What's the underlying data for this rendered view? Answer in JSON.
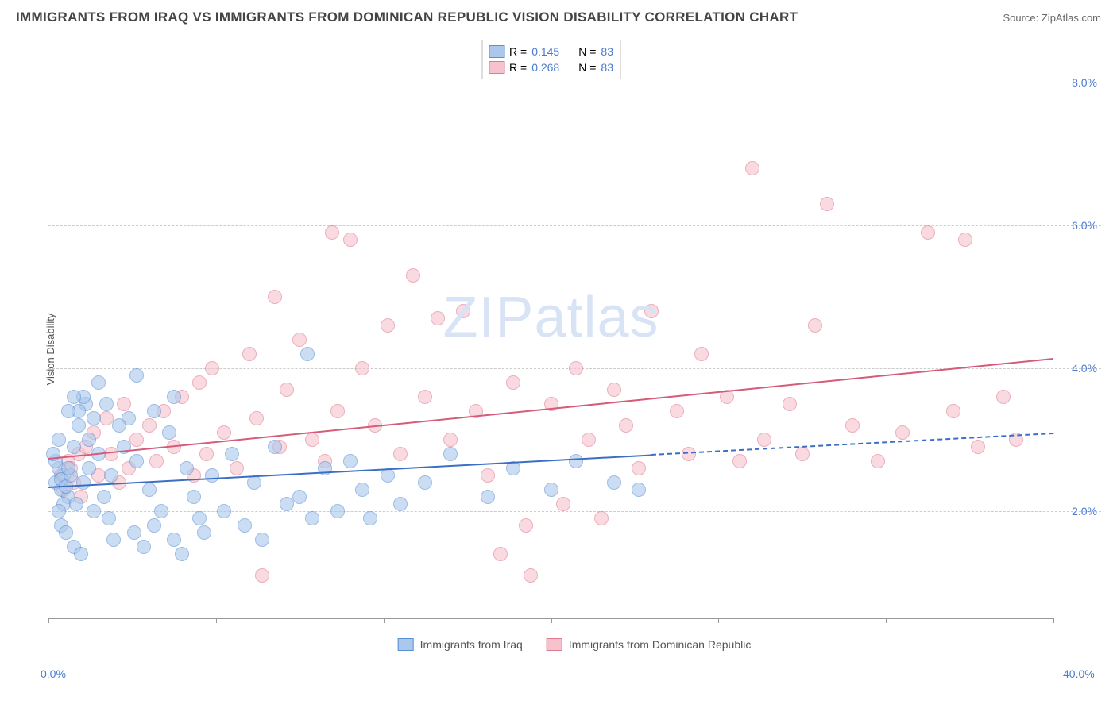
{
  "header": {
    "title": "IMMIGRANTS FROM IRAQ VS IMMIGRANTS FROM DOMINICAN REPUBLIC VISION DISABILITY CORRELATION CHART",
    "source": "Source: ZipAtlas.com"
  },
  "watermark": "ZIPatlas",
  "chart": {
    "type": "scatter",
    "ylabel": "Vision Disability",
    "xlim": [
      0,
      40
    ],
    "ylim": [
      0.5,
      8.6
    ],
    "yticks": [
      2.0,
      4.0,
      6.0,
      8.0
    ],
    "ytick_labels": [
      "2.0%",
      "4.0%",
      "6.0%",
      "8.0%"
    ],
    "xticks": [
      0,
      6.67,
      13.33,
      20,
      26.67,
      33.33,
      40
    ],
    "xtick_labels": {
      "start": "0.0%",
      "end": "40.0%"
    },
    "grid_color": "#cccccc",
    "axis_color": "#999999",
    "background_color": "#ffffff",
    "point_radius": 9,
    "point_opacity": 0.6,
    "series": {
      "iraq": {
        "label": "Immigrants from Iraq",
        "fill_color": "#a9c8ec",
        "stroke_color": "#5b8fd6",
        "R": "0.145",
        "N": "83",
        "trend": {
          "x1": 0,
          "y1": 2.35,
          "x2": 40,
          "y2": 3.1,
          "color": "#3a6fc5",
          "dash_from_x": 24
        },
        "points": [
          [
            0.3,
            2.4
          ],
          [
            0.5,
            2.3
          ],
          [
            0.6,
            2.5
          ],
          [
            0.4,
            2.6
          ],
          [
            0.8,
            2.2
          ],
          [
            0.5,
            2.45
          ],
          [
            0.7,
            2.35
          ],
          [
            0.9,
            2.5
          ],
          [
            0.3,
            2.7
          ],
          [
            0.6,
            2.1
          ],
          [
            0.4,
            2.0
          ],
          [
            0.8,
            2.6
          ],
          [
            1.0,
            2.9
          ],
          [
            1.2,
            3.2
          ],
          [
            0.5,
            1.8
          ],
          [
            0.7,
            1.7
          ],
          [
            1.0,
            1.5
          ],
          [
            1.3,
            1.4
          ],
          [
            1.1,
            2.1
          ],
          [
            1.4,
            2.4
          ],
          [
            1.6,
            2.6
          ],
          [
            1.8,
            3.3
          ],
          [
            1.5,
            3.5
          ],
          [
            2.0,
            2.8
          ],
          [
            2.2,
            2.2
          ],
          [
            2.4,
            1.9
          ],
          [
            2.6,
            1.6
          ],
          [
            2.0,
            3.8
          ],
          [
            1.2,
            3.4
          ],
          [
            1.4,
            3.6
          ],
          [
            1.8,
            2.0
          ],
          [
            2.5,
            2.5
          ],
          [
            3.0,
            2.9
          ],
          [
            3.2,
            3.3
          ],
          [
            3.5,
            2.7
          ],
          [
            3.8,
            1.5
          ],
          [
            3.4,
            1.7
          ],
          [
            4.0,
            2.3
          ],
          [
            4.2,
            1.8
          ],
          [
            4.5,
            2.0
          ],
          [
            4.8,
            3.1
          ],
          [
            5.0,
            1.6
          ],
          [
            5.3,
            1.4
          ],
          [
            5.5,
            2.6
          ],
          [
            5.8,
            2.2
          ],
          [
            6.0,
            1.9
          ],
          [
            6.5,
            2.5
          ],
          [
            6.2,
            1.7
          ],
          [
            7.0,
            2.0
          ],
          [
            7.3,
            2.8
          ],
          [
            7.8,
            1.8
          ],
          [
            8.2,
            2.4
          ],
          [
            8.5,
            1.6
          ],
          [
            9.0,
            2.9
          ],
          [
            9.5,
            2.1
          ],
          [
            10.0,
            2.2
          ],
          [
            10.3,
            4.2
          ],
          [
            10.5,
            1.9
          ],
          [
            11.0,
            2.6
          ],
          [
            11.5,
            2.0
          ],
          [
            12.0,
            2.7
          ],
          [
            12.5,
            2.3
          ],
          [
            12.8,
            1.9
          ],
          [
            13.5,
            2.5
          ],
          [
            14.0,
            2.1
          ],
          [
            15.0,
            2.4
          ],
          [
            16.0,
            2.8
          ],
          [
            17.5,
            2.2
          ],
          [
            18.5,
            2.6
          ],
          [
            20.0,
            2.3
          ],
          [
            21.0,
            2.7
          ],
          [
            22.5,
            2.4
          ],
          [
            23.5,
            2.3
          ],
          [
            3.5,
            3.9
          ],
          [
            4.2,
            3.4
          ],
          [
            5.0,
            3.6
          ],
          [
            1.0,
            3.6
          ],
          [
            0.8,
            3.4
          ],
          [
            1.6,
            3.0
          ],
          [
            2.8,
            3.2
          ],
          [
            2.3,
            3.5
          ],
          [
            0.4,
            3.0
          ],
          [
            0.2,
            2.8
          ]
        ]
      },
      "dominican": {
        "label": "Immigrants from Dominican Republic",
        "fill_color": "#f5c2cd",
        "stroke_color": "#e07a8f",
        "R": "0.268",
        "N": "83",
        "trend": {
          "x1": 0,
          "y1": 2.75,
          "x2": 40,
          "y2": 4.15,
          "color": "#d65a7a",
          "dash_from_x": null
        },
        "points": [
          [
            0.5,
            2.5
          ],
          [
            0.8,
            2.7
          ],
          [
            1.0,
            2.4
          ],
          [
            1.2,
            2.8
          ],
          [
            0.6,
            2.3
          ],
          [
            0.9,
            2.6
          ],
          [
            1.5,
            2.9
          ],
          [
            1.3,
            2.2
          ],
          [
            1.8,
            3.1
          ],
          [
            2.0,
            2.5
          ],
          [
            2.3,
            3.3
          ],
          [
            2.5,
            2.8
          ],
          [
            2.8,
            2.4
          ],
          [
            3.0,
            3.5
          ],
          [
            3.2,
            2.6
          ],
          [
            3.5,
            3.0
          ],
          [
            4.0,
            3.2
          ],
          [
            4.3,
            2.7
          ],
          [
            4.6,
            3.4
          ],
          [
            5.0,
            2.9
          ],
          [
            5.3,
            3.6
          ],
          [
            5.8,
            2.5
          ],
          [
            6.0,
            3.8
          ],
          [
            6.3,
            2.8
          ],
          [
            6.5,
            4.0
          ],
          [
            7.0,
            3.1
          ],
          [
            7.5,
            2.6
          ],
          [
            8.0,
            4.2
          ],
          [
            8.3,
            3.3
          ],
          [
            8.5,
            1.1
          ],
          [
            9.0,
            5.0
          ],
          [
            9.2,
            2.9
          ],
          [
            9.5,
            3.7
          ],
          [
            10.0,
            4.4
          ],
          [
            10.5,
            3.0
          ],
          [
            11.0,
            2.7
          ],
          [
            11.3,
            5.9
          ],
          [
            11.5,
            3.4
          ],
          [
            12.0,
            5.8
          ],
          [
            12.5,
            4.0
          ],
          [
            13.0,
            3.2
          ],
          [
            13.5,
            4.6
          ],
          [
            14.0,
            2.8
          ],
          [
            14.5,
            5.3
          ],
          [
            15.0,
            3.6
          ],
          [
            15.5,
            4.7
          ],
          [
            16.0,
            3.0
          ],
          [
            16.5,
            4.8
          ],
          [
            17.0,
            3.4
          ],
          [
            17.5,
            2.5
          ],
          [
            18.0,
            1.4
          ],
          [
            18.5,
            3.8
          ],
          [
            19.0,
            1.8
          ],
          [
            19.2,
            1.1
          ],
          [
            20.0,
            3.5
          ],
          [
            20.5,
            2.1
          ],
          [
            21.0,
            4.0
          ],
          [
            21.5,
            3.0
          ],
          [
            22.0,
            1.9
          ],
          [
            22.5,
            3.7
          ],
          [
            23.0,
            3.2
          ],
          [
            23.5,
            2.6
          ],
          [
            24.0,
            4.8
          ],
          [
            25.0,
            3.4
          ],
          [
            25.5,
            2.8
          ],
          [
            26.0,
            4.2
          ],
          [
            27.0,
            3.6
          ],
          [
            27.5,
            2.7
          ],
          [
            28.0,
            6.8
          ],
          [
            28.5,
            3.0
          ],
          [
            29.5,
            3.5
          ],
          [
            30.0,
            2.8
          ],
          [
            30.5,
            4.6
          ],
          [
            31.0,
            6.3
          ],
          [
            32.0,
            3.2
          ],
          [
            33.0,
            2.7
          ],
          [
            34.0,
            3.1
          ],
          [
            35.0,
            5.9
          ],
          [
            36.0,
            3.4
          ],
          [
            36.5,
            5.8
          ],
          [
            37.0,
            2.9
          ],
          [
            38.0,
            3.6
          ],
          [
            38.5,
            3.0
          ]
        ]
      }
    }
  },
  "legend_top": {
    "r_label": "R =",
    "n_label": "N ="
  }
}
